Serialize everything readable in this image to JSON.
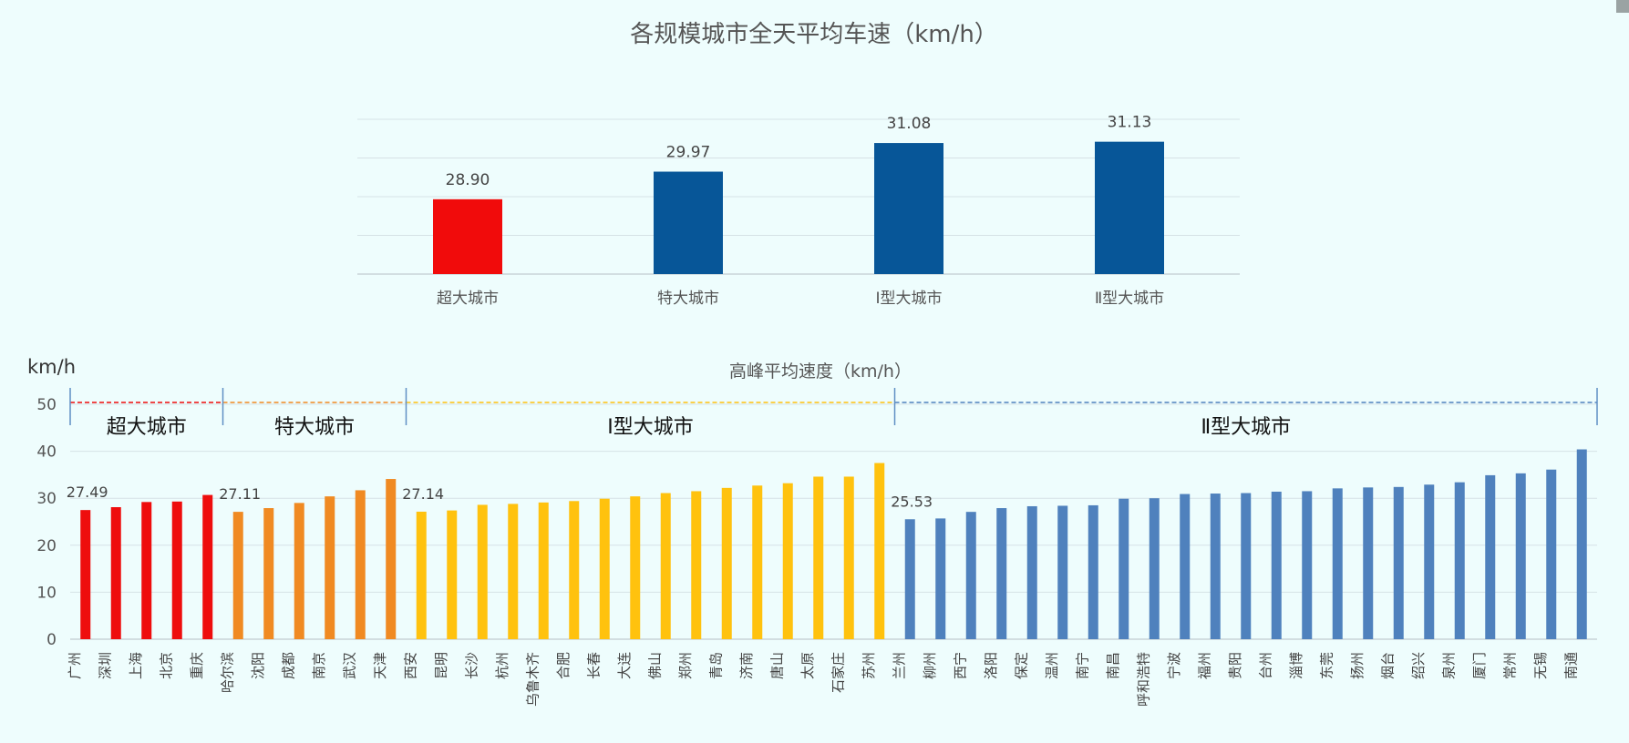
{
  "colors": {
    "background": "#eefdfd",
    "super_city": "#ee0d0d",
    "mega_city": "#f08a22",
    "type1_city": "#ffc20e",
    "type2_city": "#4f81bd",
    "summary_bar_red": "#f10b0b",
    "summary_bar_blue": "#075698",
    "grid": "#d6e2e6",
    "text": "#444444"
  },
  "chart_data": [
    {
      "type": "bar",
      "title": "各规模城市全天平均车速（km/h）",
      "categories": [
        "超大城市",
        "特大城市",
        "Ⅰ型大城市",
        "Ⅱ型大城市"
      ],
      "values": [
        28.9,
        29.97,
        31.08,
        31.13
      ],
      "data_labels": [
        "28.90",
        "29.97",
        "31.08",
        "31.13"
      ],
      "ylim": [
        26,
        32
      ],
      "grid": true
    },
    {
      "type": "bar",
      "title": "高峰平均速度（km/h）",
      "ylabel": "km/h",
      "ylim": [
        0,
        50
      ],
      "yticks": [
        0,
        10,
        20,
        30,
        40,
        50
      ],
      "grid": true,
      "groups": [
        {
          "name": "超大城市",
          "color": "#ee0d0d",
          "categories": [
            "广州",
            "深圳",
            "上海",
            "北京",
            "重庆"
          ],
          "values": [
            27.49,
            28.1,
            29.2,
            29.3,
            30.7
          ],
          "first_label": "27.49"
        },
        {
          "name": "特大城市",
          "color": "#f08a22",
          "categories": [
            "哈尔滨",
            "沈阳",
            "成都",
            "南京",
            "武汉",
            "天津"
          ],
          "values": [
            27.11,
            27.9,
            29.0,
            30.4,
            31.7,
            34.1
          ],
          "first_label": "27.11"
        },
        {
          "name": "Ⅰ型大城市",
          "color": "#ffc20e",
          "categories": [
            "西安",
            "昆明",
            "长沙",
            "杭州",
            "乌鲁木齐",
            "合肥",
            "长春",
            "大连",
            "佛山",
            "郑州",
            "青岛",
            "济南",
            "唐山",
            "太原",
            "石家庄",
            "苏州"
          ],
          "values": [
            27.14,
            27.4,
            28.6,
            28.8,
            29.1,
            29.4,
            29.9,
            30.4,
            31.1,
            31.5,
            32.2,
            32.7,
            33.2,
            34.6,
            34.6,
            37.5
          ],
          "first_label": "27.14"
        },
        {
          "name": "Ⅱ型大城市",
          "color": "#4f81bd",
          "categories": [
            "兰州",
            "柳州",
            "西宁",
            "洛阳",
            "保定",
            "温州",
            "南宁",
            "南昌",
            "呼和浩特",
            "宁波",
            "福州",
            "贵阳",
            "台州",
            "淄博",
            "东莞",
            "扬州",
            "烟台",
            "绍兴",
            "泉州",
            "厦门",
            "常州",
            "无锡",
            "南通"
          ],
          "values": [
            25.53,
            25.7,
            27.1,
            27.9,
            28.3,
            28.4,
            28.5,
            29.9,
            30.0,
            30.9,
            31.0,
            31.1,
            31.4,
            31.5,
            32.1,
            32.3,
            32.4,
            32.9,
            33.4,
            34.9,
            35.3,
            36.1,
            40.4
          ],
          "first_label": "25.53"
        }
      ]
    }
  ]
}
